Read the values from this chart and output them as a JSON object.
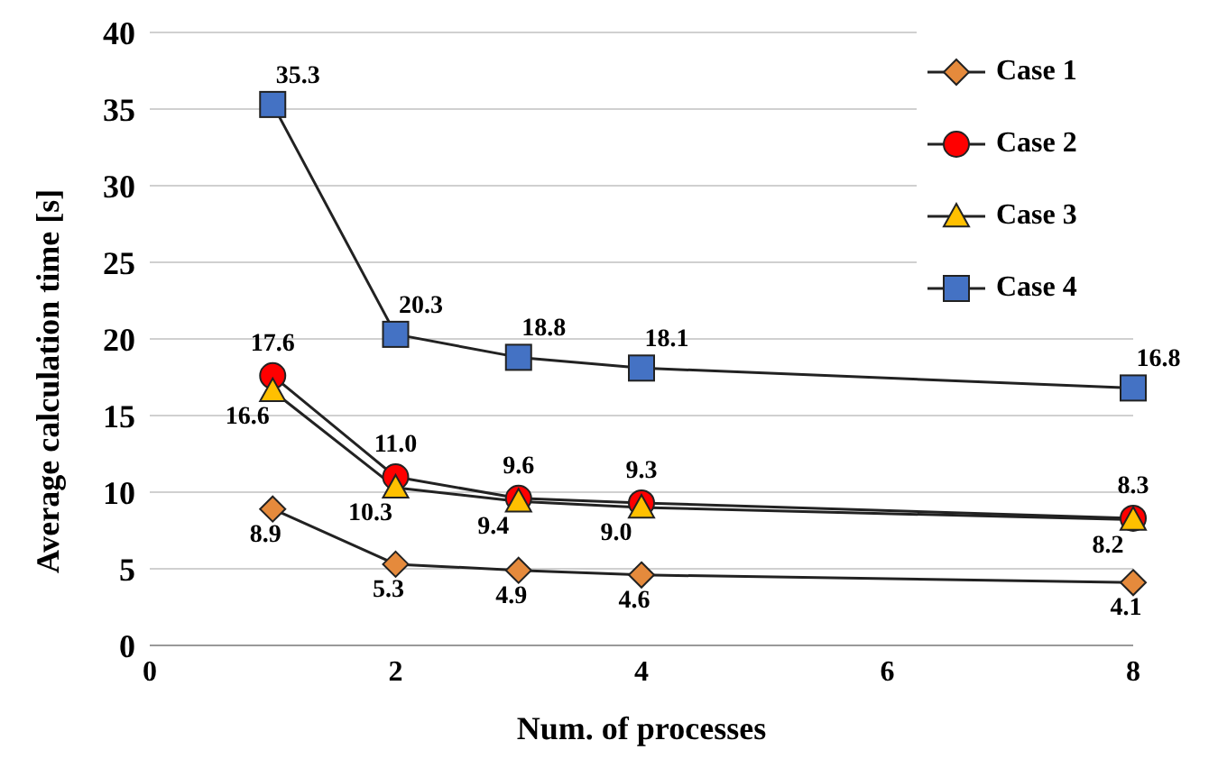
{
  "chart_data": {
    "type": "line",
    "xlabel": "Num. of processes",
    "ylabel": "Average calculation time [s]",
    "x": [
      1,
      2,
      3,
      4,
      8
    ],
    "xlim": [
      0,
      8
    ],
    "xticks": [
      0,
      2,
      4,
      6,
      8
    ],
    "ylim": [
      0,
      40
    ],
    "yticks": [
      0,
      5,
      10,
      15,
      20,
      25,
      30,
      35,
      40
    ],
    "grid": "y",
    "legend": "top right",
    "series": [
      {
        "name": "Case 1",
        "color": "#e58a3c",
        "marker": "diamond",
        "values": [
          8.9,
          5.3,
          4.9,
          4.6,
          4.1
        ],
        "value_labels": [
          "8.9",
          "5.3",
          "4.9",
          "4.6",
          "4.1"
        ]
      },
      {
        "name": "Case 2",
        "color": "#ff0000",
        "marker": "circle",
        "values": [
          17.6,
          11.0,
          9.6,
          9.3,
          8.3
        ],
        "value_labels": [
          "17.6",
          "11.0",
          "9.6",
          "9.3",
          "8.3"
        ]
      },
      {
        "name": "Case 3",
        "color": "#ffc000",
        "marker": "triangle",
        "values": [
          16.6,
          10.3,
          9.4,
          9.0,
          8.2
        ],
        "value_labels": [
          "16.6",
          "10.3",
          "9.4",
          "9.0",
          "8.2"
        ]
      },
      {
        "name": "Case 4",
        "color": "#4472c4",
        "marker": "square",
        "values": [
          35.3,
          20.3,
          18.8,
          18.1,
          16.8
        ],
        "value_labels": [
          "35.3",
          "20.3",
          "18.8",
          "18.1",
          "16.8"
        ]
      }
    ]
  }
}
